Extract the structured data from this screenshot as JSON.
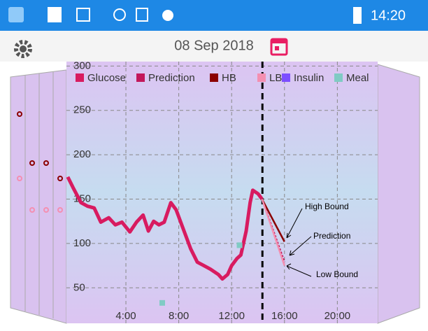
{
  "status_bar": {
    "time": "14:20"
  },
  "header": {
    "date": "08 Sep 2018"
  },
  "chart_data": {
    "type": "line",
    "xlim": [
      -0.5,
      23.05
    ],
    "ylim": [
      10,
      305
    ],
    "xticks": [
      {
        "value": 4,
        "label": "4:00"
      },
      {
        "value": 8,
        "label": "8:00"
      },
      {
        "value": 12,
        "label": "12:00"
      },
      {
        "value": 16,
        "label": "16:00"
      },
      {
        "value": 20,
        "label": "20:00"
      }
    ],
    "yticks": [
      50,
      100,
      150,
      200,
      250,
      300
    ],
    "grid": true,
    "now_marker": 14.33,
    "series": [
      {
        "name": "Glucose",
        "color": "#d81b60",
        "kind": "line",
        "x": [
          -0.4,
          0,
          0.6,
          1.1,
          1.6,
          2.1,
          2.7,
          3.2,
          3.7,
          4.3,
          4.8,
          5.3,
          5.7,
          6.1,
          6.5,
          6.9,
          7.4,
          7.8,
          8.3,
          8.9,
          9.4,
          9.9,
          10.4,
          11.0,
          11.3,
          11.7,
          12.0,
          12.4,
          12.7,
          13.1,
          13.4,
          13.6,
          14.0,
          14.3
        ],
        "values": [
          175,
          163,
          146,
          142,
          140,
          124,
          129,
          121,
          124,
          113,
          124,
          132,
          114,
          125,
          121,
          124,
          146,
          138,
          118,
          94,
          79,
          75,
          71,
          65,
          60,
          65,
          75,
          83,
          87,
          114,
          146,
          160,
          156,
          150
        ]
      },
      {
        "name": "Prediction",
        "color": "#c2185b",
        "kind": "line",
        "x": [
          14.3,
          16.0
        ],
        "values": [
          150,
          79
        ]
      },
      {
        "name": "HB",
        "color": "#8b0000",
        "kind": "line",
        "x": [
          14.3,
          16.0
        ],
        "values": [
          150,
          102
        ]
      },
      {
        "name": "LB",
        "color": "#f48fb1",
        "kind": "line",
        "x": [
          14.3,
          16.0
        ],
        "values": [
          150,
          75
        ]
      },
      {
        "name": "Insulin",
        "color": "#7c4dff",
        "kind": "point",
        "x": [],
        "values": []
      },
      {
        "name": "Meal",
        "color": "#80cbc4",
        "kind": "point",
        "x": [
          6.75,
          12.6
        ],
        "values": [
          33,
          98
        ]
      }
    ],
    "annotations": [
      "High Bound",
      "Prediction",
      "Low Bound"
    ]
  }
}
